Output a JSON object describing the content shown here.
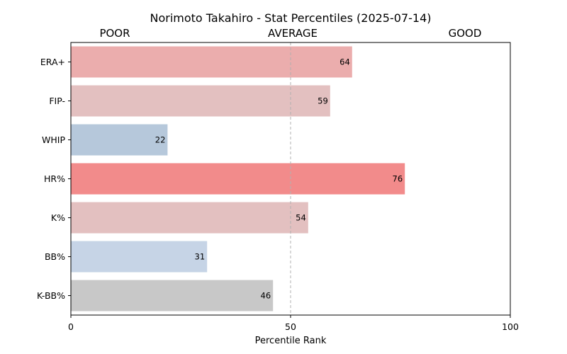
{
  "chart_data": {
    "type": "bar",
    "orientation": "horizontal",
    "title": "Norimoto Takahiro - Stat Percentiles (2025-07-14)",
    "header_labels": [
      "POOR",
      "AVERAGE",
      "GOOD"
    ],
    "xlabel": "Percentile Rank",
    "ylabel": "",
    "xlim": [
      0,
      100
    ],
    "xticks": [
      0,
      50,
      100
    ],
    "reference_line": 50,
    "grid": false,
    "categories": [
      "ERA+",
      "FIP-",
      "WHIP",
      "HR%",
      "K%",
      "BB%",
      "K-BB%"
    ],
    "values": [
      64,
      59,
      22,
      76,
      54,
      31,
      46
    ],
    "colors": [
      "#ebadad",
      "#e3c0c0",
      "#b6c8db",
      "#f28b8b",
      "#e3c0c0",
      "#c6d4e6",
      "#c8c8c8"
    ]
  }
}
